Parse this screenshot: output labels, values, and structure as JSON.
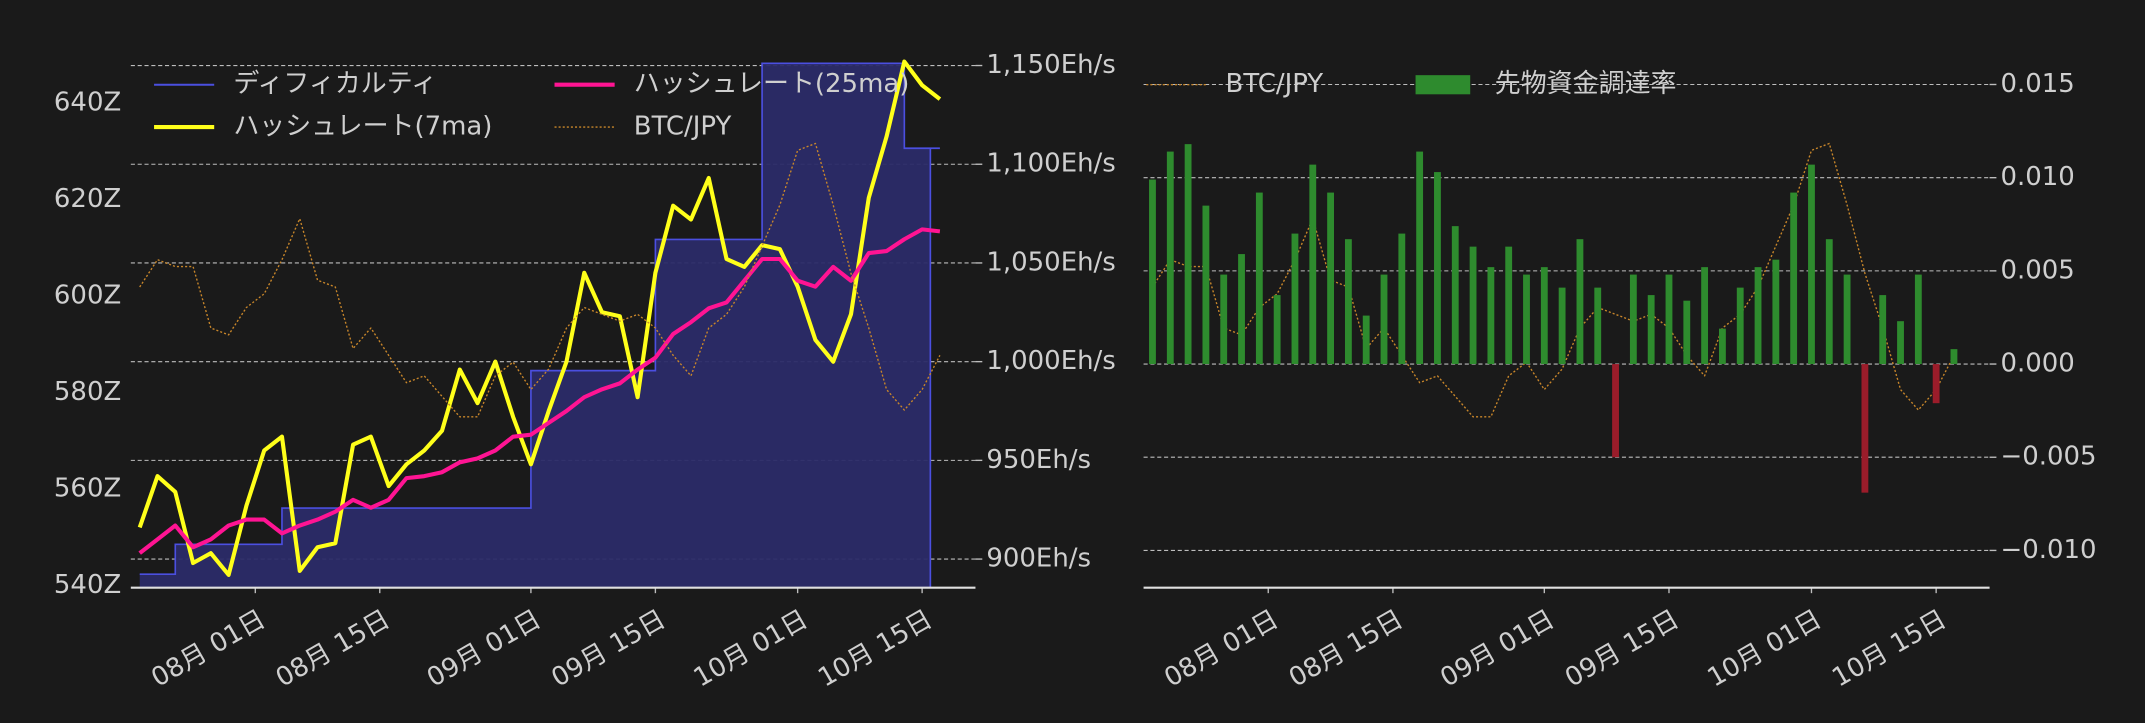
{
  "chart_data": [
    {
      "type": "line",
      "legend": "upper left",
      "legend_columns": 2,
      "grid": "y2",
      "xlim": [
        "07-18",
        "10-21"
      ],
      "xticks": [
        {
          "value": "08-01",
          "label": "08月 01日"
        },
        {
          "value": "08-15",
          "label": "08月 15日"
        },
        {
          "value": "09-01",
          "label": "09月 01日"
        },
        {
          "value": "09-15",
          "label": "09月 15日"
        },
        {
          "value": "10-01",
          "label": "10月 01日"
        },
        {
          "value": "10-15",
          "label": "10月 15日"
        }
      ],
      "ylim": [
        539.5,
        650
      ],
      "yticks": [
        {
          "value": 540,
          "label": "540Z"
        },
        {
          "value": 560,
          "label": "560Z"
        },
        {
          "value": 580,
          "label": "580Z"
        },
        {
          "value": 600,
          "label": "600Z"
        },
        {
          "value": 620,
          "label": "620Z"
        },
        {
          "value": 640,
          "label": "640Z"
        }
      ],
      "y2lim": [
        885.5,
        1155.5
      ],
      "y2ticks": [
        {
          "value": 900,
          "label": "900Eh/s"
        },
        {
          "value": 950,
          "label": "950Eh/s"
        },
        {
          "value": 1000,
          "label": "1,000Eh/s"
        },
        {
          "value": 1050,
          "label": "1,050Eh/s"
        },
        {
          "value": 1100,
          "label": "1,100Eh/s"
        },
        {
          "value": 1150,
          "label": "1,150Eh/s"
        }
      ],
      "y3lim": [
        7000000,
        10900000
      ],
      "x": [
        "07-19",
        "07-21",
        "07-23",
        "07-25",
        "07-27",
        "07-29",
        "07-31",
        "08-02",
        "08-04",
        "08-06",
        "08-08",
        "08-10",
        "08-12",
        "08-14",
        "08-16",
        "08-18",
        "08-20",
        "08-22",
        "08-24",
        "08-26",
        "08-28",
        "08-30",
        "09-01",
        "09-03",
        "09-05",
        "09-07",
        "09-09",
        "09-11",
        "09-13",
        "09-15",
        "09-17",
        "09-19",
        "09-21",
        "09-23",
        "09-25",
        "09-27",
        "09-29",
        "10-01",
        "10-03",
        "10-05",
        "10-07",
        "10-09",
        "10-11",
        "10-13",
        "10-15",
        "10-17"
      ],
      "series": [
        {
          "name": "ディフィカルティ",
          "kind": "area",
          "step": true,
          "color": "#4b4fe0",
          "fill": "#2b2b68",
          "axis": "y",
          "values": [
            542.3,
            542.3,
            548.5,
            548.5,
            548.5,
            548.5,
            548.5,
            548.5,
            556,
            556,
            556,
            556,
            556,
            556,
            556,
            556,
            556,
            556,
            556,
            556,
            556,
            556,
            584.5,
            584.5,
            584.5,
            584.5,
            584.5,
            584.5,
            584.5,
            611.7,
            611.7,
            611.7,
            611.7,
            611.7,
            611.7,
            648.2,
            648.2,
            648.2,
            648.2,
            648.2,
            648.2,
            648.2,
            648.2,
            630.6,
            630.6,
            630.6
          ]
        },
        {
          "name": "ハッシュレート(7ma)",
          "kind": "line",
          "color": "#ffff1a",
          "width": 3,
          "axis": "y2",
          "values": [
            916,
            942,
            934,
            898,
            903,
            892,
            927,
            955,
            962,
            894,
            906,
            908,
            958,
            962,
            937,
            948,
            955,
            965,
            996,
            979,
            1000,
            972,
            948,
            975,
            1000,
            1045,
            1025,
            1023,
            982,
            1045,
            1079,
            1072,
            1093,
            1052,
            1048,
            1059,
            1057,
            1038,
            1011,
            1000,
            1024,
            1083,
            1114,
            1152,
            1140,
            1133
          ]
        },
        {
          "name": "ハッシュレート(25ma)",
          "kind": "line",
          "color": "#ff1493",
          "width": 3,
          "axis": "y2",
          "values": [
            903,
            910,
            917,
            906,
            910,
            917,
            920,
            920,
            913,
            917,
            920,
            924,
            930,
            926,
            930,
            941,
            942,
            944,
            949,
            951,
            955,
            962,
            963,
            969,
            975,
            982,
            986,
            989,
            996,
            1002,
            1014,
            1020,
            1027,
            1030,
            1041,
            1052,
            1052,
            1041,
            1038,
            1048,
            1041,
            1055,
            1056,
            1062,
            1067,
            1066
          ]
        },
        {
          "name": "BTC/JPY",
          "kind": "line",
          "linestyle": "dotted",
          "color": "#c8862a",
          "width": 1,
          "axis": "y3",
          "values": [
            9200000,
            9400000,
            9350000,
            9350000,
            8900000,
            8850000,
            9050000,
            9150000,
            9400000,
            9700000,
            9250000,
            9200000,
            8750000,
            8900000,
            8700000,
            8500000,
            8550000,
            8400000,
            8250000,
            8250000,
            8550000,
            8650000,
            8450000,
            8600000,
            8900000,
            9050000,
            9000000,
            8950000,
            9000000,
            8900000,
            8700000,
            8550000,
            8900000,
            9000000,
            9200000,
            9500000,
            9800000,
            10200000,
            10250000,
            9800000,
            9300000,
            8900000,
            8450000,
            8300000,
            8450000,
            8700000
          ]
        }
      ]
    },
    {
      "type": "bar",
      "legend": "upper left",
      "legend_columns": 2,
      "grid": "y",
      "y_side": "right",
      "xlim": [
        "07-18",
        "10-21"
      ],
      "xticks": [
        {
          "value": "08-01",
          "label": "08月 01日"
        },
        {
          "value": "08-15",
          "label": "08月 15日"
        },
        {
          "value": "09-01",
          "label": "09月 01日"
        },
        {
          "value": "09-15",
          "label": "09月 15日"
        },
        {
          "value": "10-01",
          "label": "10月 01日"
        },
        {
          "value": "10-15",
          "label": "10月 15日"
        }
      ],
      "ylim": [
        -0.012,
        0.0166
      ],
      "yticks": [
        {
          "value": -0.01,
          "label": "−0.010"
        },
        {
          "value": -0.005,
          "label": "−0.005"
        },
        {
          "value": 0,
          "label": "0.000"
        },
        0.005,
        {
          "value": 0.01,
          "label": "0.010"
        },
        0.015
      ],
      "y3lim": [
        7000000,
        10900000
      ],
      "x": [
        "07-19",
        "07-21",
        "07-23",
        "07-25",
        "07-27",
        "07-29",
        "07-31",
        "08-02",
        "08-04",
        "08-06",
        "08-08",
        "08-10",
        "08-12",
        "08-14",
        "08-16",
        "08-18",
        "08-20",
        "08-22",
        "08-24",
        "08-26",
        "08-28",
        "08-30",
        "09-01",
        "09-03",
        "09-05",
        "09-07",
        "09-09",
        "09-11",
        "09-13",
        "09-15",
        "09-17",
        "09-19",
        "09-21",
        "09-23",
        "09-25",
        "09-27",
        "09-29",
        "10-01",
        "10-03",
        "10-05",
        "10-07",
        "10-09",
        "10-11",
        "10-13",
        "10-15",
        "10-17"
      ],
      "series": [
        {
          "name": "BTC/JPY",
          "kind": "line",
          "linestyle": "dotted",
          "color": "#c8862a",
          "width": 1,
          "axis": "y3",
          "values": [
            9200000,
            9400000,
            9350000,
            9350000,
            8900000,
            8850000,
            9050000,
            9150000,
            9400000,
            9700000,
            9250000,
            9200000,
            8750000,
            8900000,
            8700000,
            8500000,
            8550000,
            8400000,
            8250000,
            8250000,
            8550000,
            8650000,
            8450000,
            8600000,
            8900000,
            9050000,
            9000000,
            8950000,
            9000000,
            8900000,
            8700000,
            8550000,
            8900000,
            9000000,
            9200000,
            9500000,
            9800000,
            10200000,
            10250000,
            9800000,
            9300000,
            8900000,
            8450000,
            8300000,
            8450000,
            8700000
          ]
        },
        {
          "name": "先物資金調達率",
          "kind": "bar",
          "color": "#2e8b2e",
          "negative_color": "#9b1c2a",
          "axis": "y",
          "values": [
            0.0099,
            0.0114,
            0.0118,
            0.0085,
            0.0048,
            0.0059,
            0.0092,
            0.0037,
            0.007,
            0.0107,
            0.0092,
            0.0067,
            0.0026,
            0.0048,
            0.007,
            0.0114,
            0.0103,
            0.0074,
            0.0063,
            0.0052,
            0.0063,
            0.0048,
            0.0052,
            0.0041,
            0.0067,
            0.0041,
            -0.005,
            0.0048,
            0.0037,
            0.0048,
            0.0034,
            0.0052,
            0.0019,
            0.0041,
            0.0052,
            0.0056,
            0.0092,
            0.0107,
            0.0067,
            0.0048,
            -0.0069,
            0.0037,
            0.0023,
            0.0048,
            -0.0021,
            0.0008
          ]
        }
      ]
    }
  ]
}
